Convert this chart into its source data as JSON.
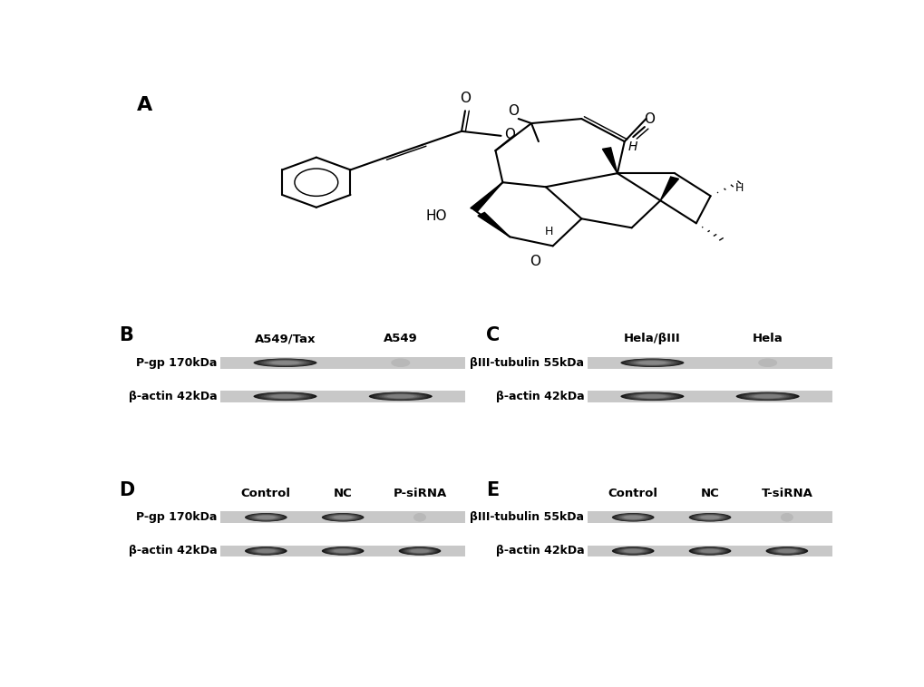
{
  "fig_width": 10.2,
  "fig_height": 7.58,
  "background_color": "#ffffff",
  "panel_labels": [
    "A",
    "B",
    "C",
    "D",
    "E"
  ],
  "panel_B": {
    "label": "B",
    "col_labels": [
      "A549/Tax",
      "A549"
    ],
    "row1_label": "P-gp 170kDa",
    "row2_label": "β-actin 42kDa",
    "band1_intensities": [
      1.0,
      0.15
    ],
    "band2_intensities": [
      1.0,
      1.0
    ],
    "n_cols": 2
  },
  "panel_C": {
    "label": "C",
    "col_labels": [
      "Hela/βIII",
      "Hela"
    ],
    "row1_label": "βIII-tubulin 55kDa",
    "row2_label": "β-actin 42kDa",
    "band1_intensities": [
      1.0,
      0.1
    ],
    "band2_intensities": [
      1.0,
      1.0
    ],
    "n_cols": 2
  },
  "panel_D": {
    "label": "D",
    "col_labels": [
      "Control",
      "NC",
      "P-siRNA"
    ],
    "row1_label": "P-gp 170kDa",
    "row2_label": "β-actin 42kDa",
    "band1_intensities": [
      1.0,
      1.0,
      0.05
    ],
    "band2_intensities": [
      1.0,
      1.0,
      1.0
    ],
    "n_cols": 3
  },
  "panel_E": {
    "label": "E",
    "col_labels": [
      "Control",
      "NC",
      "T-siRNA"
    ],
    "row1_label": "βIII-tubulin 55kDa",
    "row2_label": "β-actin 42kDa",
    "band1_intensities": [
      1.0,
      1.0,
      0.05
    ],
    "band2_intensities": [
      1.0,
      1.0,
      1.0
    ],
    "n_cols": 3
  }
}
